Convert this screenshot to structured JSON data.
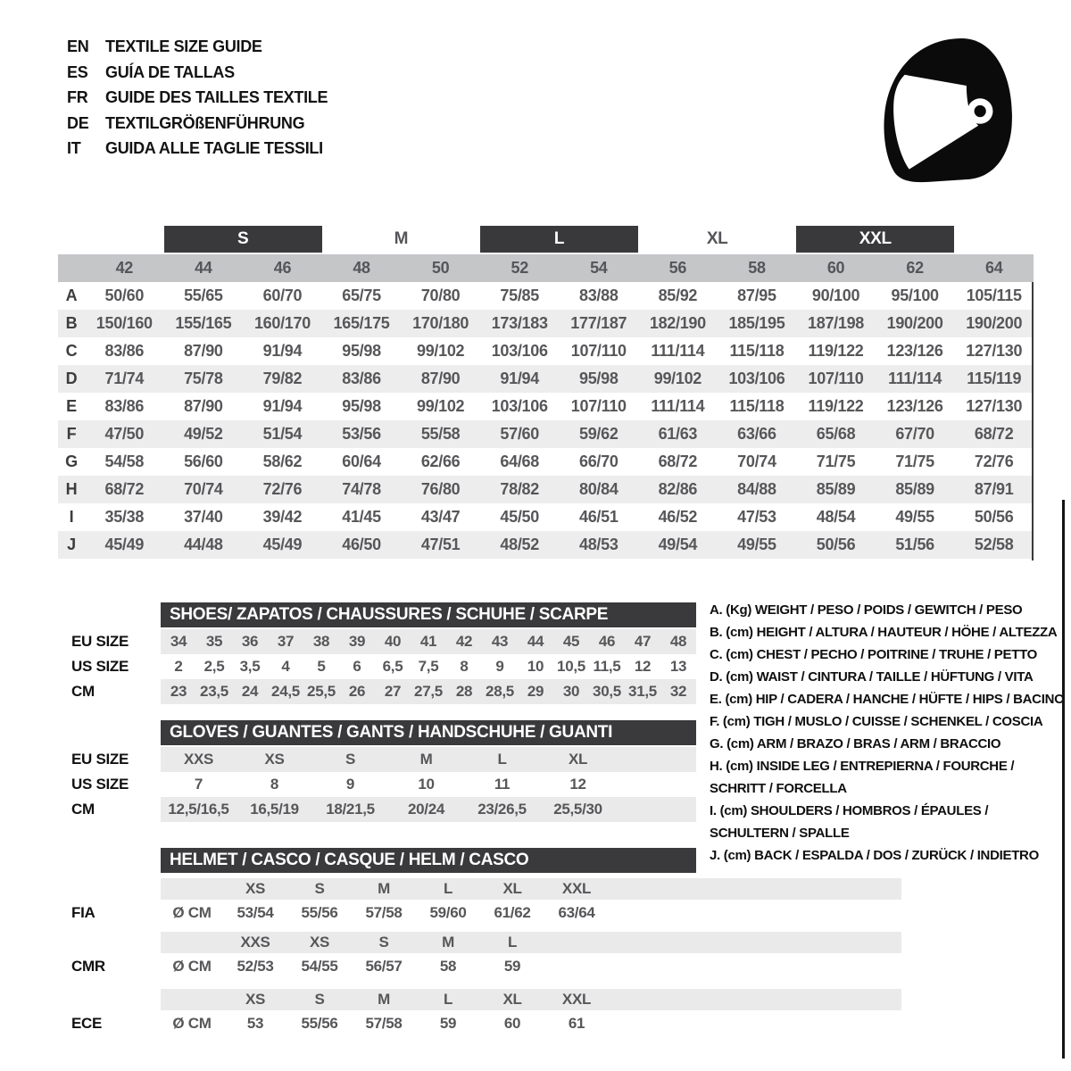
{
  "colors": {
    "dark": "#39393b",
    "bar_gray": "#c5c6c8",
    "stripe": "#ededee",
    "value_text": "#57575a"
  },
  "languages": [
    {
      "code": "EN",
      "title": "TEXTILE SIZE GUIDE"
    },
    {
      "code": "ES",
      "title": "GUÍA DE TALLAS"
    },
    {
      "code": "FR",
      "title": "GUIDE DES TAILLES TEXTILE"
    },
    {
      "code": "DE",
      "title": "TEXTILGRÖßENFÜHRUNG"
    },
    {
      "code": "IT",
      "title": "GUIDA ALLE TAGLIE TESSILI"
    }
  ],
  "size_table": {
    "letter_sizes": [
      {
        "label": "S",
        "boxed": true
      },
      {
        "label": "M",
        "boxed": false
      },
      {
        "label": "L",
        "boxed": true
      },
      {
        "label": "XL",
        "boxed": false
      },
      {
        "label": "XXL",
        "boxed": true
      }
    ],
    "numeric_sizes": [
      "42",
      "44",
      "46",
      "48",
      "50",
      "52",
      "54",
      "56",
      "58",
      "60",
      "62",
      "64"
    ],
    "rows": [
      {
        "letter": "A",
        "values": [
          "50/60",
          "55/65",
          "60/70",
          "65/75",
          "70/80",
          "75/85",
          "83/88",
          "85/92",
          "87/95",
          "90/100",
          "95/100",
          "105/115"
        ]
      },
      {
        "letter": "B",
        "values": [
          "150/160",
          "155/165",
          "160/170",
          "165/175",
          "170/180",
          "173/183",
          "177/187",
          "182/190",
          "185/195",
          "187/198",
          "190/200",
          "190/200"
        ]
      },
      {
        "letter": "C",
        "values": [
          "83/86",
          "87/90",
          "91/94",
          "95/98",
          "99/102",
          "103/106",
          "107/110",
          "111/114",
          "115/118",
          "119/122",
          "123/126",
          "127/130"
        ]
      },
      {
        "letter": "D",
        "values": [
          "71/74",
          "75/78",
          "79/82",
          "83/86",
          "87/90",
          "91/94",
          "95/98",
          "99/102",
          "103/106",
          "107/110",
          "111/114",
          "115/119"
        ]
      },
      {
        "letter": "E",
        "values": [
          "83/86",
          "87/90",
          "91/94",
          "95/98",
          "99/102",
          "103/106",
          "107/110",
          "111/114",
          "115/118",
          "119/122",
          "123/126",
          "127/130"
        ]
      },
      {
        "letter": "F",
        "values": [
          "47/50",
          "49/52",
          "51/54",
          "53/56",
          "55/58",
          "57/60",
          "59/62",
          "61/63",
          "63/66",
          "65/68",
          "67/70",
          "68/72"
        ]
      },
      {
        "letter": "G",
        "values": [
          "54/58",
          "56/60",
          "58/62",
          "60/64",
          "62/66",
          "64/68",
          "66/70",
          "68/72",
          "70/74",
          "71/75",
          "71/75",
          "72/76"
        ]
      },
      {
        "letter": "H",
        "values": [
          "68/72",
          "70/74",
          "72/76",
          "74/78",
          "76/80",
          "78/82",
          "80/84",
          "82/86",
          "84/88",
          "85/89",
          "85/89",
          "87/91"
        ]
      },
      {
        "letter": "I",
        "values": [
          "35/38",
          "37/40",
          "39/42",
          "41/45",
          "43/47",
          "45/50",
          "46/51",
          "46/52",
          "47/53",
          "48/54",
          "49/55",
          "50/56"
        ]
      },
      {
        "letter": "J",
        "values": [
          "45/49",
          "44/48",
          "45/49",
          "46/50",
          "47/51",
          "48/52",
          "48/53",
          "49/54",
          "49/55",
          "50/56",
          "51/56",
          "52/58"
        ]
      }
    ]
  },
  "shoes": {
    "title": "SHOES/ ZAPATOS / CHAUSSURES / SCHUHE / SCARPE",
    "rows": [
      {
        "label": "EU SIZE",
        "values": [
          "34",
          "35",
          "36",
          "37",
          "38",
          "39",
          "40",
          "41",
          "42",
          "43",
          "44",
          "45",
          "46",
          "47",
          "48"
        ]
      },
      {
        "label": "US SIZE",
        "values": [
          "2",
          "2,5",
          "3,5",
          "4",
          "5",
          "6",
          "6,5",
          "7,5",
          "8",
          "9",
          "10",
          "10,5",
          "11,5",
          "12",
          "13"
        ]
      },
      {
        "label": "CM",
        "values": [
          "23",
          "23,5",
          "24",
          "24,5",
          "25,5",
          "26",
          "27",
          "27,5",
          "28",
          "28,5",
          "29",
          "30",
          "30,5",
          "31,5",
          "32"
        ]
      }
    ]
  },
  "gloves": {
    "title": "GLOVES / GUANTES / GANTS / HANDSCHUHE / GUANTI",
    "rows": [
      {
        "label": "EU SIZE",
        "values": [
          "XXS",
          "XS",
          "S",
          "M",
          "L",
          "XL"
        ]
      },
      {
        "label": "US SIZE",
        "values": [
          "7",
          "8",
          "9",
          "10",
          "11",
          "12"
        ]
      },
      {
        "label": "CM",
        "values": [
          "12,5/16,5",
          "16,5/19",
          "18/21,5",
          "20/24",
          "23/26,5",
          "25,5/30"
        ]
      }
    ]
  },
  "helmet": {
    "title": "HELMET / CASCO / CASQUE / HELM / CASCO",
    "unit": "Ø CM",
    "standards": [
      {
        "label": "FIA",
        "sizes": [
          "XS",
          "S",
          "M",
          "L",
          "XL",
          "XXL"
        ],
        "values": [
          "53/54",
          "55/56",
          "57/58",
          "59/60",
          "61/62",
          "63/64"
        ]
      },
      {
        "label": "CMR",
        "sizes": [
          "XXS",
          "XS",
          "S",
          "M",
          "L",
          ""
        ],
        "values": [
          "52/53",
          "54/55",
          "56/57",
          "58",
          "59",
          ""
        ]
      },
      {
        "label": "ECE",
        "sizes": [
          "XS",
          "S",
          "M",
          "L",
          "XL",
          "XXL"
        ],
        "values": [
          "53",
          "55/56",
          "57/58",
          "59",
          "60",
          "61"
        ]
      }
    ]
  },
  "legend": [
    "A. (Kg) WEIGHT / PESO / POIDS / GEWITCH / PESO",
    "B. (cm) HEIGHT / ALTURA / HAUTEUR / HÖHE / ALTEZZA",
    "C. (cm) CHEST / PECHO / POITRINE / TRUHE / PETTO",
    "D. (cm) WAIST / CINTURA / TAILLE / HÜFTUNG / VITA",
    "E. (cm) HIP / CADERA / HANCHE / HÜFTE / HIPS / BACINO",
    "F. (cm) TIGH / MUSLO / CUISSE / SCHENKEL / COSCIA",
    "G. (cm) ARM / BRAZO / BRAS / ARM / BRACCIO",
    "H. (cm) INSIDE LEG / ENTREPIERNA / FOURCHE /",
    "SCHRITT / FORCELLA",
    "I. (cm) SHOULDERS / HOMBROS / ÉPAULES /",
    "SCHULTERN / SPALLE",
    "J. (cm) BACK / ESPALDA / DOS / ZURÜCK / INDIETRO"
  ]
}
